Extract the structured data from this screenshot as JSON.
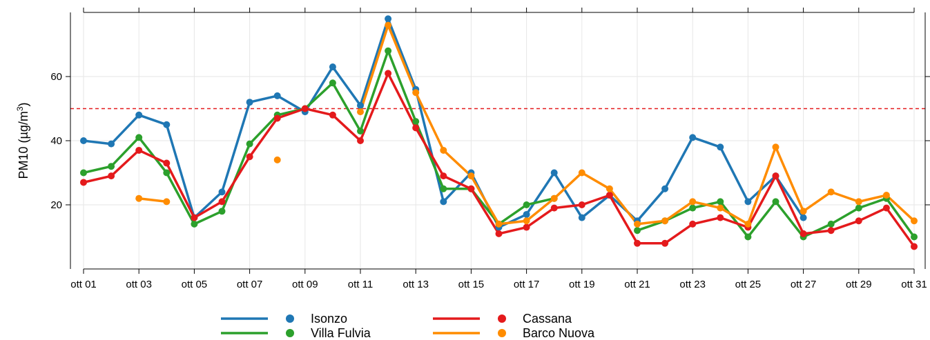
{
  "chart_data": {
    "type": "line",
    "ylabel": "PM10 (µg/m³)",
    "ylabel_parts": {
      "prefix": "PM10 (µg/m",
      "sup": "3",
      "suffix": ")"
    },
    "x_tick_labels": [
      "ott 01",
      "ott 03",
      "ott 05",
      "ott 07",
      "ott 09",
      "ott 11",
      "ott 13",
      "ott 15",
      "ott 17",
      "ott 19",
      "ott 21",
      "ott 23",
      "ott 25",
      "ott 27",
      "ott 29",
      "ott 31"
    ],
    "x_tick_days": [
      1,
      3,
      5,
      7,
      9,
      11,
      13,
      15,
      17,
      19,
      21,
      23,
      25,
      27,
      29,
      31
    ],
    "y_ticks": [
      20,
      40,
      60
    ],
    "xlim": [
      0.5,
      31.5
    ],
    "ylim": [
      0,
      80
    ],
    "threshold": {
      "value": 50,
      "color": "#e41a1c",
      "style": "dashed"
    },
    "grid": true,
    "legend_position": "bottom",
    "days": [
      1,
      2,
      3,
      4,
      5,
      6,
      7,
      8,
      9,
      10,
      11,
      12,
      13,
      14,
      15,
      16,
      17,
      18,
      19,
      20,
      21,
      22,
      23,
      24,
      25,
      26,
      27,
      28,
      29,
      30,
      31
    ],
    "series": [
      {
        "name": "Isonzo",
        "color": "#1f77b4",
        "values": [
          40,
          39,
          48,
          45,
          16,
          24,
          52,
          54,
          49,
          63,
          51,
          78,
          56,
          21,
          30,
          13,
          17,
          30,
          16,
          23,
          15,
          25,
          41,
          38,
          21,
          29,
          16,
          null,
          null,
          null,
          null
        ]
      },
      {
        "name": "Villa Fulvia",
        "color": "#2ca02c",
        "values": [
          30,
          32,
          41,
          30,
          14,
          18,
          39,
          48,
          50,
          58,
          43,
          68,
          46,
          25,
          25,
          14,
          20,
          22,
          null,
          null,
          12,
          15,
          19,
          21,
          10,
          21,
          10,
          14,
          19,
          22,
          10
        ]
      },
      {
        "name": "Cassana",
        "color": "#e41a1c",
        "values": [
          27,
          29,
          37,
          33,
          16,
          21,
          35,
          47,
          50,
          48,
          40,
          61,
          44,
          29,
          25,
          11,
          13,
          19,
          20,
          23,
          8,
          8,
          14,
          16,
          13,
          29,
          11,
          12,
          15,
          19,
          7
        ]
      },
      {
        "name": "Barco Nuova",
        "color": "#ff8c00",
        "values": [
          null,
          null,
          22,
          21,
          null,
          null,
          null,
          34,
          null,
          null,
          49,
          76,
          55,
          37,
          29,
          14,
          15,
          22,
          30,
          25,
          14,
          15,
          21,
          19,
          14,
          38,
          18,
          24,
          21,
          23,
          15
        ]
      }
    ]
  }
}
